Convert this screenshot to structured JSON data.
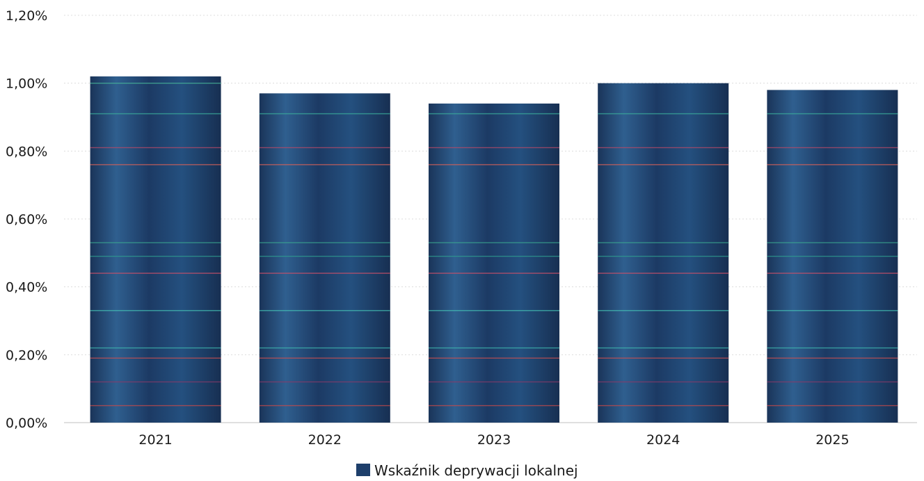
{
  "chart_data": {
    "type": "bar",
    "categories": [
      "2021",
      "2022",
      "2023",
      "2024",
      "2025"
    ],
    "series": [
      {
        "name": "Wskaźnik deprywacji lokalnej",
        "values": [
          1.02,
          0.97,
          0.94,
          1.0,
          0.98
        ],
        "color": "#1e3f6b"
      }
    ],
    "yticks": [
      "0,00%",
      "0,20%",
      "0,40%",
      "0,60%",
      "0,80%",
      "1,00%",
      "1,20%"
    ],
    "ylim": [
      0,
      1.2
    ],
    "grid": true,
    "legend_position": "bottom"
  }
}
